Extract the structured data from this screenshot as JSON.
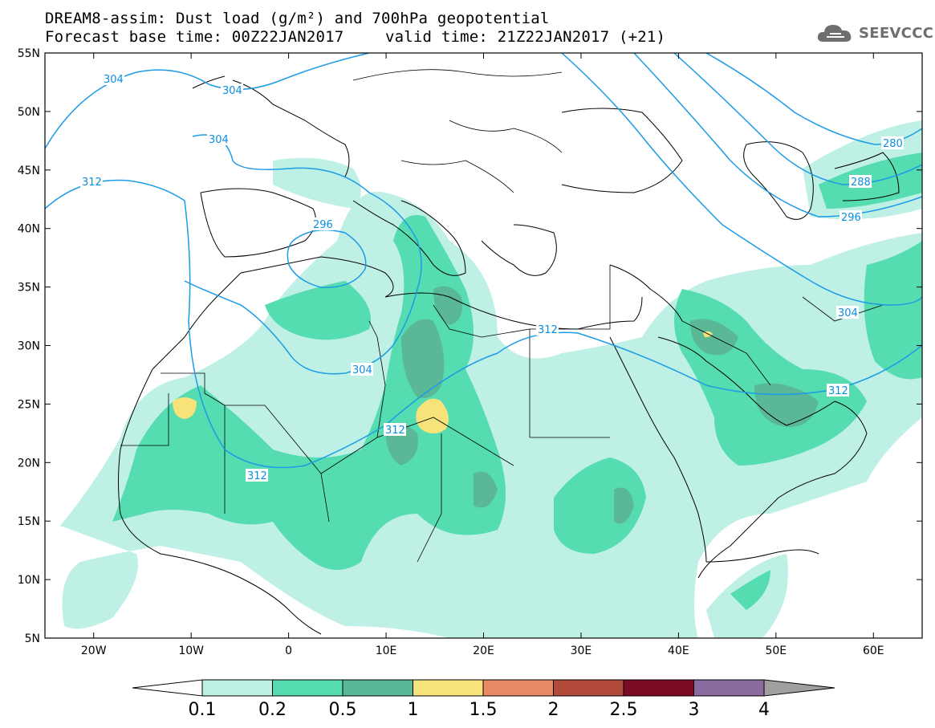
{
  "header": {
    "title_line1": "DREAM8-assim: Dust load (g/m²) and 700hPa geopotential",
    "base_time_label": "Forecast base time: 00Z22JAN2017",
    "valid_time_label": "valid time: 21Z22JAN2017 (+21)"
  },
  "logo": {
    "text": "SEEVCCC",
    "icon": "cloud-logo-icon"
  },
  "axes": {
    "lat_labels": [
      "55N",
      "50N",
      "45N",
      "40N",
      "35N",
      "30N",
      "25N",
      "20N",
      "15N",
      "10N",
      "5N"
    ],
    "lon_labels": [
      "20W",
      "10W",
      "0",
      "10E",
      "20E",
      "30E",
      "40E",
      "50E",
      "60E"
    ],
    "lon_range": [
      -25,
      65
    ],
    "lat_range": [
      5,
      55
    ]
  },
  "contours": {
    "color": "#1c9be6",
    "labels": [
      "304",
      "304",
      "304",
      "312",
      "296",
      "304",
      "312",
      "312",
      "312",
      "304",
      "280",
      "288",
      "296",
      "312"
    ]
  },
  "colorbar": {
    "ticks": [
      "0.1",
      "0.2",
      "0.5",
      "1",
      "1.5",
      "2",
      "2.5",
      "3",
      "4"
    ],
    "colors": [
      "#ffffff",
      "#bff0e6",
      "#55dcb0",
      "#5ab896",
      "#f7e37a",
      "#e88a66",
      "#b24a3c",
      "#7c0a24",
      "#8b6aa0",
      "#a0a0a0"
    ]
  },
  "dust_colors": {
    "low": "#bff0e6",
    "mid": "#55dcb0",
    "high": "#5ab896",
    "very_high": "#f7e37a"
  }
}
